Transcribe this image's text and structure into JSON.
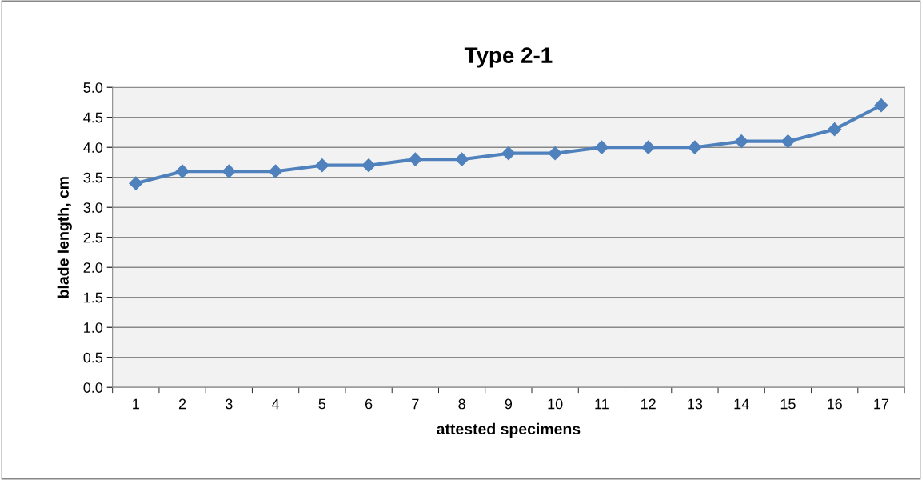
{
  "chart_data": {
    "type": "line",
    "title": "Type 2-1",
    "xlabel": "attested specimens",
    "ylabel": "blade length, cm",
    "categories": [
      "1",
      "2",
      "3",
      "4",
      "5",
      "6",
      "7",
      "8",
      "9",
      "10",
      "11",
      "12",
      "13",
      "14",
      "15",
      "16",
      "17"
    ],
    "series": [
      {
        "color": "#4f81bd",
        "values": [
          3.4,
          3.6,
          3.6,
          3.6,
          3.7,
          3.7,
          3.8,
          3.8,
          3.9,
          3.9,
          4.0,
          4.0,
          4.0,
          4.1,
          4.1,
          4.3,
          4.7
        ]
      }
    ],
    "ylim": [
      0,
      5
    ],
    "yticks": [
      {
        "value": 0,
        "label": "0.0"
      },
      {
        "value": 0.5,
        "label": "0.5"
      },
      {
        "value": 1,
        "label": "1.0"
      },
      {
        "value": 1.5,
        "label": "1.5"
      },
      {
        "value": 2,
        "label": "2.0"
      },
      {
        "value": 2.5,
        "label": "2.5"
      },
      {
        "value": 3,
        "label": "3.0"
      },
      {
        "value": 3.5,
        "label": "3.5"
      },
      {
        "value": 4,
        "label": "4.0"
      },
      {
        "value": 4.5,
        "label": "4.5"
      },
      {
        "value": 5,
        "label": "5.0"
      }
    ],
    "grid": "y",
    "marker": "diamond",
    "line_style": "solid",
    "legend": false
  }
}
